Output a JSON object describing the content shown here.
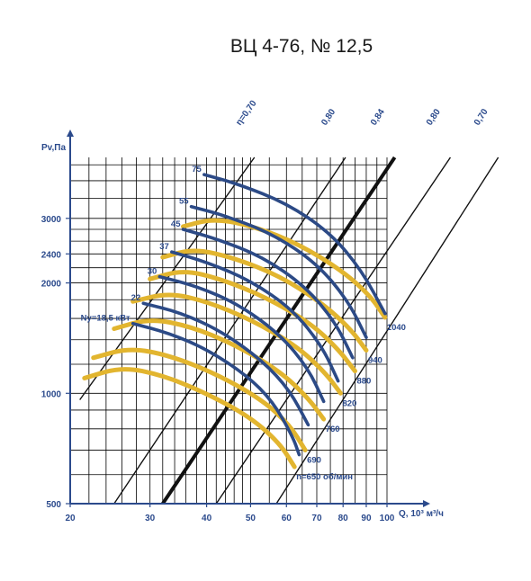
{
  "chart_data": {
    "type": "line",
    "title": "ВЦ 4-76, № 12,5",
    "xlabel": "Q, 10³ м³/ч",
    "ylabel": "Pv,Па",
    "x_scale": "log",
    "y_scale": "log",
    "xlim": [
      20,
      100
    ],
    "ylim": [
      500,
      4400
    ],
    "x_ticks": [
      {
        "value": 20,
        "label": "20"
      },
      {
        "value": 30,
        "label": "30"
      },
      {
        "value": 40,
        "label": "40"
      },
      {
        "value": 50,
        "label": "50"
      },
      {
        "value": 60,
        "label": "60"
      },
      {
        "value": 70,
        "label": "70"
      },
      {
        "value": 80,
        "label": "80"
      },
      {
        "value": 90,
        "label": "90"
      },
      {
        "value": 100,
        "label": "100"
      }
    ],
    "y_ticks": [
      {
        "value": 500,
        "label": "500"
      },
      {
        "value": 1000,
        "label": "1000"
      },
      {
        "value": 2000,
        "label": "2000"
      },
      {
        "value": 2400,
        "label": "2400"
      },
      {
        "value": 3000,
        "label": "3000"
      }
    ],
    "grid": true,
    "speed_curves": [
      {
        "label": "n=650 об/мин",
        "color": "#e2b52f",
        "points": [
          [
            21.5,
            1100
          ],
          [
            26,
            1180
          ],
          [
            32,
            1120
          ],
          [
            40,
            1000
          ],
          [
            50,
            860
          ],
          [
            58,
            730
          ],
          [
            62.5,
            630
          ]
        ]
      },
      {
        "label": "690",
        "color": "#e2b52f",
        "points": [
          [
            22.5,
            1250
          ],
          [
            27,
            1330
          ],
          [
            33,
            1270
          ],
          [
            42,
            1130
          ],
          [
            53,
            960
          ],
          [
            61,
            820
          ],
          [
            66,
            700
          ]
        ]
      },
      {
        "label": "760",
        "color": "#e2b52f",
        "points": [
          [
            25,
            1500
          ],
          [
            30,
            1600
          ],
          [
            37,
            1520
          ],
          [
            46,
            1360
          ],
          [
            58,
            1150
          ],
          [
            67,
            970
          ],
          [
            72.5,
            850
          ]
        ]
      },
      {
        "label": "820",
        "color": "#e2b52f",
        "points": [
          [
            27.5,
            1780
          ],
          [
            33,
            1880
          ],
          [
            40,
            1780
          ],
          [
            50,
            1590
          ],
          [
            63,
            1350
          ],
          [
            73,
            1140
          ],
          [
            79,
            1000
          ]
        ]
      },
      {
        "label": "880",
        "color": "#e2b52f",
        "points": [
          [
            30,
            2050
          ],
          [
            35.5,
            2170
          ],
          [
            43,
            2050
          ],
          [
            54,
            1830
          ],
          [
            68,
            1550
          ],
          [
            78,
            1320
          ],
          [
            85,
            1150
          ]
        ]
      },
      {
        "label": "940",
        "color": "#e2b52f",
        "points": [
          [
            32,
            2350
          ],
          [
            37.5,
            2480
          ],
          [
            46,
            2340
          ],
          [
            58,
            2090
          ],
          [
            72,
            1760
          ],
          [
            83,
            1500
          ],
          [
            90,
            1310
          ]
        ]
      },
      {
        "label": "1040",
        "color": "#e2b52f",
        "points": [
          [
            35.5,
            2850
          ],
          [
            41.5,
            3000
          ],
          [
            51,
            2850
          ],
          [
            64,
            2550
          ],
          [
            80,
            2150
          ],
          [
            92,
            1840
          ],
          [
            99,
            1610
          ]
        ]
      }
    ],
    "power_curves": [
      {
        "label": "Ny=18,5 кВт",
        "color": "#2c4a86",
        "points": [
          [
            27.5,
            1550
          ],
          [
            33,
            1460
          ],
          [
            40,
            1320
          ],
          [
            49,
            1120
          ],
          [
            56,
            950
          ],
          [
            62,
            760
          ],
          [
            64,
            680
          ]
        ]
      },
      {
        "label": "22",
        "color": "#2c4a86",
        "points": [
          [
            29,
            1760
          ],
          [
            35,
            1660
          ],
          [
            43,
            1480
          ],
          [
            53,
            1230
          ],
          [
            61,
            1020
          ],
          [
            67,
            820
          ]
        ]
      },
      {
        "label": "30",
        "color": "#2c4a86",
        "points": [
          [
            31.5,
            2080
          ],
          [
            38,
            1960
          ],
          [
            47,
            1750
          ],
          [
            58,
            1450
          ],
          [
            67,
            1170
          ],
          [
            72.5,
            950
          ]
        ]
      },
      {
        "label": "37",
        "color": "#2c4a86",
        "points": [
          [
            33.5,
            2430
          ],
          [
            40,
            2280
          ],
          [
            50,
            2030
          ],
          [
            62,
            1690
          ],
          [
            72,
            1340
          ],
          [
            78,
            1080
          ]
        ]
      },
      {
        "label": "45",
        "color": "#2c4a86",
        "points": [
          [
            35.5,
            2800
          ],
          [
            42,
            2640
          ],
          [
            53,
            2360
          ],
          [
            66,
            1960
          ],
          [
            77,
            1560
          ],
          [
            84,
            1250
          ]
        ]
      },
      {
        "label": "55",
        "color": "#2c4a86",
        "points": [
          [
            37,
            3230
          ],
          [
            44,
            3050
          ],
          [
            56,
            2720
          ],
          [
            70,
            2260
          ],
          [
            82,
            1790
          ],
          [
            90,
            1420
          ]
        ]
      },
      {
        "label": "75",
        "color": "#2c4a86",
        "points": [
          [
            39.5,
            3950
          ],
          [
            47,
            3720
          ],
          [
            60,
            3300
          ],
          [
            75,
            2740
          ],
          [
            88,
            2160
          ],
          [
            99,
            1650
          ]
        ]
      }
    ],
    "efficiency_lines": [
      {
        "label": "η=0,70",
        "color": "#111111",
        "bold": false,
        "points": [
          [
            21,
            960
          ],
          [
            51,
            4400
          ]
        ]
      },
      {
        "label": "0,80",
        "color": "#111111",
        "bold": false,
        "points": [
          [
            25,
            500
          ],
          [
            81,
            4400
          ]
        ]
      },
      {
        "label": "0,84",
        "color": "#111111",
        "bold": true,
        "points": [
          [
            32,
            500
          ],
          [
            104,
            4400
          ]
        ]
      },
      {
        "label": "0,80",
        "color": "#111111",
        "bold": false,
        "points": [
          [
            42,
            500
          ],
          [
            138,
            4400
          ]
        ]
      },
      {
        "label": "0,70",
        "color": "#111111",
        "bold": false,
        "points": [
          [
            57,
            500
          ],
          [
            176,
            4400
          ]
        ]
      }
    ]
  }
}
